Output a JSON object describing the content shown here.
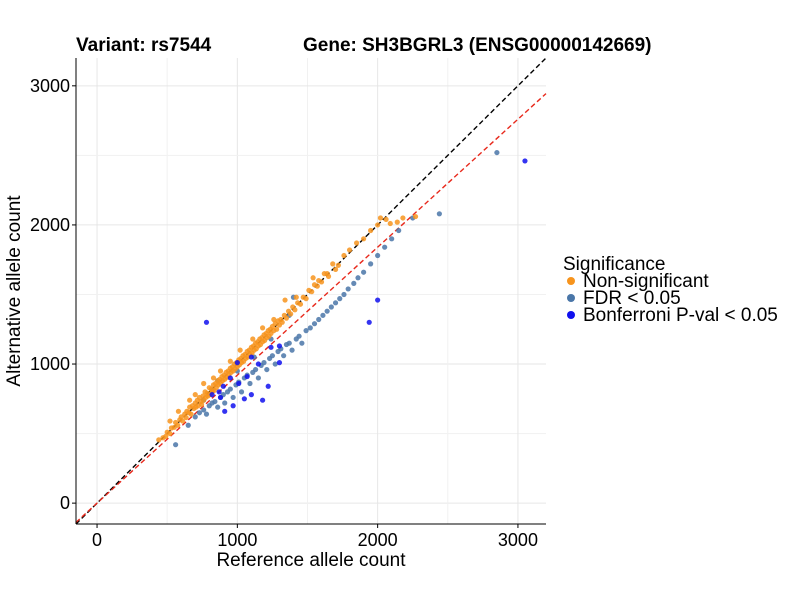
{
  "titles": {
    "variant": "Variant: rs7544",
    "gene": "Gene: SH3BGRL3 (ENSG00000142669)"
  },
  "legend": {
    "title": "Significance",
    "items": [
      {
        "label": "Non-significant",
        "color": "#f7941d"
      },
      {
        "label": "FDR < 0.05",
        "color": "#4a76a8"
      },
      {
        "label": "Bonferroni P-val < 0.05",
        "color": "#1010ee"
      }
    ]
  },
  "chart_data": {
    "type": "scatter",
    "xlabel": "Reference allele count",
    "ylabel": "Alternative allele count",
    "xlim": [
      -150,
      3200
    ],
    "ylim": [
      -150,
      3200
    ],
    "xticks": [
      0,
      1000,
      2000,
      3000
    ],
    "yticks": [
      0,
      1000,
      2000,
      3000
    ],
    "grid": true,
    "legend_position": "right",
    "reference_lines": [
      {
        "name": "identity",
        "slope": 1.0,
        "intercept": 0,
        "color": "#000000",
        "dash": true
      },
      {
        "name": "fit",
        "slope": 0.92,
        "intercept": 0,
        "color": "#e8291c",
        "dash": true
      }
    ],
    "series": [
      {
        "name": "Non-significant",
        "color": "#f7941d",
        "points": [
          [
            440,
            455
          ],
          [
            470,
            470
          ],
          [
            490,
            480
          ],
          [
            500,
            510
          ],
          [
            520,
            500
          ],
          [
            530,
            540
          ],
          [
            550,
            545
          ],
          [
            560,
            580
          ],
          [
            575,
            560
          ],
          [
            590,
            600
          ],
          [
            600,
            620
          ],
          [
            610,
            590
          ],
          [
            625,
            640
          ],
          [
            635,
            615
          ],
          [
            640,
            660
          ],
          [
            655,
            650
          ],
          [
            660,
            690
          ],
          [
            670,
            640
          ],
          [
            680,
            700
          ],
          [
            690,
            680
          ],
          [
            700,
            720
          ],
          [
            705,
            690
          ],
          [
            715,
            740
          ],
          [
            720,
            700
          ],
          [
            730,
            760
          ],
          [
            740,
            730
          ],
          [
            745,
            710
          ],
          [
            755,
            770
          ],
          [
            760,
            740
          ],
          [
            770,
            800
          ],
          [
            775,
            760
          ],
          [
            785,
            790
          ],
          [
            790,
            770
          ],
          [
            800,
            830
          ],
          [
            805,
            780
          ],
          [
            815,
            820
          ],
          [
            820,
            800
          ],
          [
            830,
            850
          ],
          [
            835,
            810
          ],
          [
            845,
            860
          ],
          [
            850,
            830
          ],
          [
            860,
            880
          ],
          [
            865,
            850
          ],
          [
            875,
            890
          ],
          [
            880,
            860
          ],
          [
            890,
            910
          ],
          [
            895,
            880
          ],
          [
            905,
            920
          ],
          [
            910,
            890
          ],
          [
            920,
            940
          ],
          [
            925,
            905
          ],
          [
            935,
            950
          ],
          [
            940,
            920
          ],
          [
            950,
            970
          ],
          [
            955,
            940
          ],
          [
            965,
            980
          ],
          [
            970,
            950
          ],
          [
            980,
            1000
          ],
          [
            985,
            965
          ],
          [
            995,
            1010
          ],
          [
            1000,
            980
          ],
          [
            1010,
            1030
          ],
          [
            1015,
            995
          ],
          [
            1025,
            1040
          ],
          [
            1030,
            1010
          ],
          [
            1040,
            1060
          ],
          [
            1045,
            1020
          ],
          [
            1055,
            1070
          ],
          [
            1060,
            1040
          ],
          [
            1070,
            1090
          ],
          [
            1075,
            1050
          ],
          [
            1085,
            1100
          ],
          [
            1090,
            1070
          ],
          [
            1100,
            1120
          ],
          [
            1105,
            1080
          ],
          [
            1115,
            1130
          ],
          [
            1120,
            1100
          ],
          [
            1130,
            1150
          ],
          [
            1135,
            1110
          ],
          [
            1145,
            1160
          ],
          [
            1150,
            1130
          ],
          [
            1160,
            1180
          ],
          [
            1165,
            1140
          ],
          [
            1175,
            1190
          ],
          [
            1180,
            1160
          ],
          [
            1190,
            1210
          ],
          [
            1195,
            1170
          ],
          [
            1205,
            1220
          ],
          [
            1210,
            1190
          ],
          [
            1220,
            1240
          ],
          [
            1225,
            1200
          ],
          [
            1235,
            1250
          ],
          [
            1240,
            1220
          ],
          [
            1250,
            1270
          ],
          [
            1260,
            1240
          ],
          [
            1270,
            1290
          ],
          [
            1280,
            1250
          ],
          [
            1290,
            1310
          ],
          [
            1300,
            1280
          ],
          [
            1310,
            1320
          ],
          [
            1320,
            1300
          ],
          [
            1335,
            1350
          ],
          [
            1350,
            1330
          ],
          [
            1365,
            1380
          ],
          [
            1380,
            1360
          ],
          [
            1395,
            1410
          ],
          [
            1410,
            1390
          ],
          [
            1430,
            1440
          ],
          [
            1450,
            1430
          ],
          [
            1470,
            1480
          ],
          [
            1490,
            1470
          ],
          [
            1510,
            1530
          ],
          [
            1530,
            1520
          ],
          [
            1550,
            1570
          ],
          [
            1570,
            1560
          ],
          [
            1600,
            1590
          ],
          [
            1620,
            1650
          ],
          [
            1650,
            1630
          ],
          [
            1680,
            1720
          ],
          [
            1720,
            1710
          ],
          [
            1760,
            1780
          ],
          [
            1800,
            1820
          ],
          [
            1850,
            1870
          ],
          [
            1900,
            1900
          ],
          [
            1950,
            1960
          ],
          [
            2000,
            2000
          ],
          [
            2020,
            2050
          ],
          [
            2060,
            2040
          ],
          [
            2090,
            2010
          ],
          [
            2140,
            2020
          ],
          [
            2180,
            2050
          ],
          [
            2270,
            2060
          ],
          [
            1640,
            1650
          ],
          [
            1540,
            1620
          ],
          [
            1340,
            1460
          ],
          [
            1180,
            1260
          ],
          [
            1020,
            1100
          ],
          [
            880,
            950
          ],
          [
            760,
            860
          ],
          [
            660,
            740
          ],
          [
            580,
            660
          ],
          [
            520,
            590
          ],
          [
            950,
            1020
          ],
          [
            1110,
            1180
          ],
          [
            1260,
            1320
          ],
          [
            1420,
            1480
          ],
          [
            1580,
            1600
          ],
          [
            1700,
            1680
          ],
          [
            830,
            900
          ],
          [
            700,
            780
          ]
        ]
      },
      {
        "name": "FDR < 0.05",
        "color": "#4a76a8",
        "points": [
          [
            560,
            420
          ],
          [
            650,
            560
          ],
          [
            700,
            620
          ],
          [
            730,
            650
          ],
          [
            760,
            670
          ],
          [
            780,
            640
          ],
          [
            800,
            700
          ],
          [
            820,
            720
          ],
          [
            840,
            730
          ],
          [
            860,
            690
          ],
          [
            880,
            760
          ],
          [
            900,
            780
          ],
          [
            910,
            720
          ],
          [
            930,
            800
          ],
          [
            950,
            820
          ],
          [
            970,
            760
          ],
          [
            990,
            850
          ],
          [
            1010,
            870
          ],
          [
            1030,
            800
          ],
          [
            1050,
            900
          ],
          [
            1070,
            920
          ],
          [
            1090,
            860
          ],
          [
            1110,
            940
          ],
          [
            1130,
            960
          ],
          [
            1150,
            900
          ],
          [
            1170,
            990
          ],
          [
            1190,
            1010
          ],
          [
            1210,
            960
          ],
          [
            1230,
            1040
          ],
          [
            1250,
            1060
          ],
          [
            1270,
            1000
          ],
          [
            1290,
            1090
          ],
          [
            1310,
            1110
          ],
          [
            1330,
            1060
          ],
          [
            1350,
            1140
          ],
          [
            1370,
            1150
          ],
          [
            1390,
            1100
          ],
          [
            1420,
            1180
          ],
          [
            1440,
            1200
          ],
          [
            1460,
            1150
          ],
          [
            1490,
            1240
          ],
          [
            1520,
            1260
          ],
          [
            1550,
            1290
          ],
          [
            1580,
            1320
          ],
          [
            1610,
            1350
          ],
          [
            1640,
            1380
          ],
          [
            1670,
            1410
          ],
          [
            1700,
            1440
          ],
          [
            1730,
            1470
          ],
          [
            1760,
            1500
          ],
          [
            1790,
            1540
          ],
          [
            1830,
            1580
          ],
          [
            1860,
            1620
          ],
          [
            1900,
            1660
          ],
          [
            1950,
            1720
          ],
          [
            2000,
            1780
          ],
          [
            2050,
            1840
          ],
          [
            2100,
            1900
          ],
          [
            2150,
            1960
          ],
          [
            2250,
            2050
          ],
          [
            2440,
            2080
          ],
          [
            2850,
            2520
          ],
          [
            1400,
            1480
          ],
          [
            1370,
            1350
          ],
          [
            860,
            880
          ],
          [
            1000,
            950
          ],
          [
            1120,
            1050
          ],
          [
            1240,
            1180
          ],
          [
            760,
            740
          ],
          [
            820,
            810
          ]
        ]
      },
      {
        "name": "Bonferroni P-val < 0.05",
        "color": "#1010ee",
        "points": [
          [
            780,
            1300
          ],
          [
            3050,
            2460
          ],
          [
            2000,
            1460
          ],
          [
            1940,
            1300
          ],
          [
            1300,
            1010
          ],
          [
            1070,
            910
          ],
          [
            1010,
            860
          ],
          [
            950,
            900
          ],
          [
            900,
            840
          ],
          [
            880,
            760
          ],
          [
            1050,
            750
          ],
          [
            910,
            660
          ],
          [
            1100,
            780
          ],
          [
            1180,
            740
          ],
          [
            1220,
            840
          ],
          [
            1150,
            1000
          ],
          [
            970,
            700
          ],
          [
            870,
            800
          ],
          [
            820,
            780
          ],
          [
            1300,
            1130
          ],
          [
            1000,
            1010
          ],
          [
            1100,
            1050
          ],
          [
            1240,
            1120
          ]
        ]
      }
    ]
  }
}
